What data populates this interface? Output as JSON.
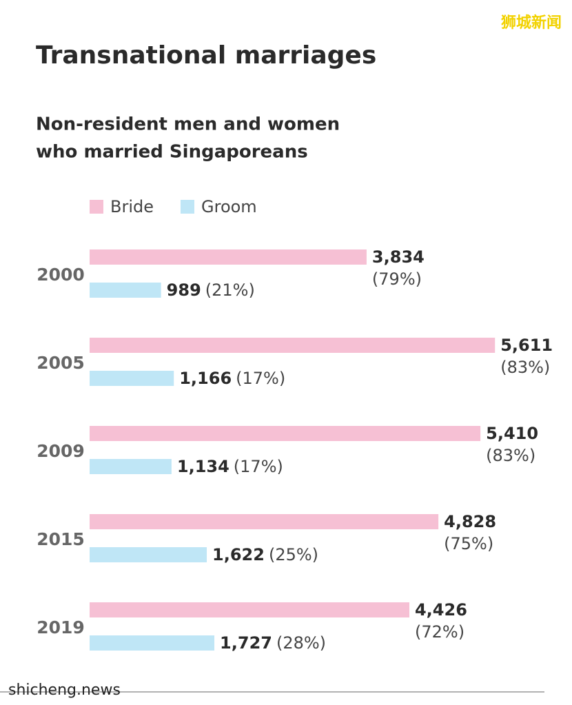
{
  "watermark_top": "狮城新闻",
  "watermark_bottom": "shicheng.news",
  "chart_data": {
    "type": "hbar",
    "title": "Transnational marriages",
    "subtitle": [
      "Non-resident men and women",
      "who married Singaporeans"
    ],
    "categories": [
      "2000",
      "2005",
      "2009",
      "2015",
      "2019"
    ],
    "xlim": [
      0,
      6000
    ],
    "series": [
      {
        "name": "Bride",
        "color": "#f6c0d4",
        "values": [
          3834,
          5611,
          5410,
          4828,
          4426
        ],
        "value_labels": [
          "3,834",
          "5,611",
          "5,410",
          "4,828",
          "4,426"
        ],
        "share_labels": [
          "(79%)",
          "(83%)",
          "(83%)",
          "(75%)",
          "(72%)"
        ]
      },
      {
        "name": "Groom",
        "color": "#bfe6f6",
        "values": [
          989,
          1166,
          1134,
          1622,
          1727
        ],
        "value_labels": [
          "989",
          "1,166",
          "1,134",
          "1,622",
          "1,727"
        ],
        "share_labels": [
          "(21%)",
          "(17%)",
          "(17%)",
          "(25%)",
          "(28%)"
        ]
      }
    ]
  }
}
